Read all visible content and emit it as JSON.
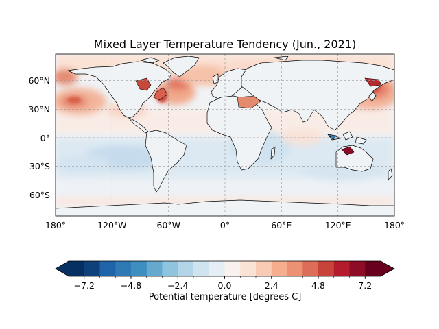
{
  "title": "Mixed Layer Temperature Tendency (Jun., 2021)",
  "map": {
    "projection": "PlateCarree",
    "lon_ticks": [
      "180°",
      "120°W",
      "60°W",
      "0°",
      "60°E",
      "120°E",
      "180°"
    ],
    "lat_ticks": [
      "60°N",
      "30°N",
      "0°",
      "30°S",
      "60°S"
    ],
    "gridlines": true,
    "coastlines": true,
    "colormap": "RdBu_r"
  },
  "colorbar": {
    "label": "Potential temperature [degrees C]",
    "ticks": [
      "−7.2",
      "−4.8",
      "−2.4",
      "0.0",
      "2.4",
      "4.8",
      "7.2"
    ],
    "extend": "both",
    "colors": [
      "#053061",
      "#0e4179",
      "#1f63a8",
      "#2f79b5",
      "#3f8ec0",
      "#65a9cf",
      "#8ec4de",
      "#b1d5e7",
      "#cfe4ef",
      "#e4eef4",
      "#f8f1ed",
      "#fbe3d4",
      "#f9cbb5",
      "#f5ad8d",
      "#ec9273",
      "#dc6e57",
      "#c8443a",
      "#b41b2c",
      "#8e0c25",
      "#67001f"
    ],
    "under_color": "#053061",
    "over_color": "#67001f"
  }
}
